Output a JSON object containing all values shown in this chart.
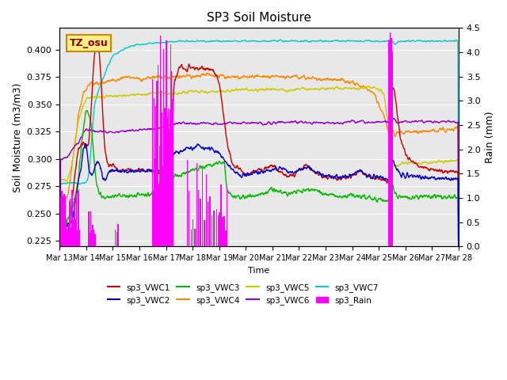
{
  "title": "SP3 Soil Moisture",
  "xlabel": "Time",
  "ylabel_left": "Soil Moisture (m3/m3)",
  "ylabel_right": "Rain (mm)",
  "ylim_left": [
    0.22,
    0.42
  ],
  "ylim_right": [
    0.0,
    4.5
  ],
  "xtick_labels": [
    "Mar 13",
    "Mar 14",
    "Mar 15",
    "Mar 16",
    "Mar 17",
    "Mar 18",
    "Mar 19",
    "Mar 20",
    "Mar 21",
    "Mar 22",
    "Mar 23",
    "Mar 24",
    "Mar 25",
    "Mar 26",
    "Mar 27",
    "Mar 28"
  ],
  "annotation_text": "TZ_osu",
  "annotation_facecolor": "#ffee88",
  "annotation_edgecolor": "#cc8800",
  "background_color": "#e8e8e8",
  "colors": {
    "vwc1": "#cc0000",
    "vwc2": "#0000cc",
    "vwc3": "#00bb00",
    "vwc4": "#ff8800",
    "vwc5": "#cccc00",
    "vwc6": "#9900cc",
    "vwc7": "#00cccc",
    "rain": "#ff00ff"
  }
}
